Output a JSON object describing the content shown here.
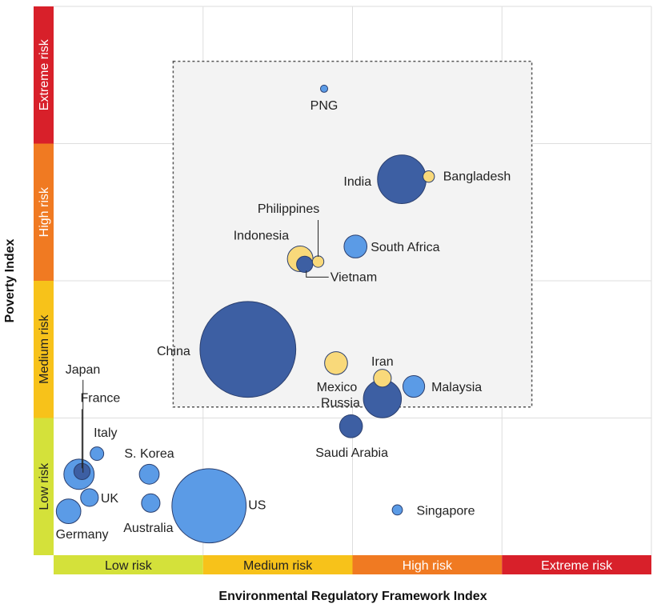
{
  "chart_data": {
    "type": "scatter",
    "subtype": "bubble",
    "xlabel": "Environmental Regulatory Framework Index",
    "ylabel": "Poverty Index",
    "xlim": [
      0,
      4
    ],
    "ylim": [
      0,
      4
    ],
    "x_bands": [
      {
        "label": "Low risk",
        "color": "#d4e13a",
        "text_color": "#222222"
      },
      {
        "label": "Medium risk",
        "color": "#f7c21a",
        "text_color": "#222222"
      },
      {
        "label": "High risk",
        "color": "#f07a22",
        "text_color": "#ffffff"
      },
      {
        "label": "Extreme risk",
        "color": "#d8202a",
        "text_color": "#ffffff"
      }
    ],
    "y_bands": [
      {
        "label": "Low risk",
        "color": "#d4e13a",
        "text_color": "#222222"
      },
      {
        "label": "Medium risk",
        "color": "#f7c21a",
        "text_color": "#222222"
      },
      {
        "label": "High risk",
        "color": "#f07a22",
        "text_color": "#ffffff"
      },
      {
        "label": "Extreme risk",
        "color": "#d8202a",
        "text_color": "#ffffff"
      }
    ],
    "grid": true,
    "highlight_box": {
      "x": [
        0.8,
        3.2
      ],
      "y": [
        1.08,
        3.6
      ]
    },
    "colors": {
      "dark": "#3d5fa3",
      "light": "#5b9be6",
      "yellow": "#f9d97a"
    },
    "points": [
      {
        "name": "PNG",
        "x": 1.81,
        "y": 3.4,
        "size": 0.02,
        "color": "light"
      },
      {
        "name": "India",
        "x": 2.33,
        "y": 2.74,
        "size": 0.9,
        "color": "dark"
      },
      {
        "name": "Bangladesh",
        "x": 2.51,
        "y": 2.76,
        "size": 0.05,
        "color": "yellow"
      },
      {
        "name": "South Africa",
        "x": 2.02,
        "y": 2.25,
        "size": 0.2,
        "color": "light"
      },
      {
        "name": "Indonesia",
        "x": 1.65,
        "y": 2.16,
        "size": 0.25,
        "color": "yellow"
      },
      {
        "name": "Philippines",
        "x": 1.77,
        "y": 2.14,
        "size": 0.05,
        "color": "yellow"
      },
      {
        "name": "Vietnam",
        "x": 1.68,
        "y": 2.12,
        "size": 0.1,
        "color": "dark"
      },
      {
        "name": "China",
        "x": 1.3,
        "y": 1.5,
        "size": 3.5,
        "color": "dark"
      },
      {
        "name": "Mexico",
        "x": 1.89,
        "y": 1.4,
        "size": 0.2,
        "color": "yellow"
      },
      {
        "name": "Iran",
        "x": 2.2,
        "y": 1.29,
        "size": 0.12,
        "color": "yellow"
      },
      {
        "name": "Malaysia",
        "x": 2.41,
        "y": 1.23,
        "size": 0.18,
        "color": "light"
      },
      {
        "name": "Russia",
        "x": 2.2,
        "y": 1.14,
        "size": 0.55,
        "color": "dark"
      },
      {
        "name": "Saudi Arabia",
        "x": 1.99,
        "y": 0.94,
        "size": 0.2,
        "color": "dark"
      },
      {
        "name": "Singapore",
        "x": 2.3,
        "y": 0.33,
        "size": 0.04,
        "color": "light"
      },
      {
        "name": "Japan",
        "x": 0.17,
        "y": 0.59,
        "size": 0.35,
        "color": "light"
      },
      {
        "name": "France",
        "x": 0.19,
        "y": 0.61,
        "size": 0.1,
        "color": "dark"
      },
      {
        "name": "Italy",
        "x": 0.29,
        "y": 0.74,
        "size": 0.07,
        "color": "light"
      },
      {
        "name": "S. Korea",
        "x": 0.64,
        "y": 0.59,
        "size": 0.15,
        "color": "light"
      },
      {
        "name": "UK",
        "x": 0.24,
        "y": 0.42,
        "size": 0.12,
        "color": "light"
      },
      {
        "name": "Germany",
        "x": 0.1,
        "y": 0.32,
        "size": 0.23,
        "color": "light"
      },
      {
        "name": "Australia",
        "x": 0.65,
        "y": 0.38,
        "size": 0.13,
        "color": "light"
      },
      {
        "name": "US",
        "x": 1.04,
        "y": 0.36,
        "size": 2.1,
        "color": "light"
      }
    ]
  }
}
